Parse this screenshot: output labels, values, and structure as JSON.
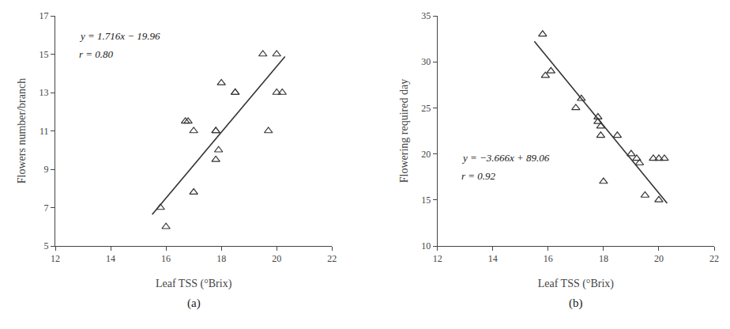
{
  "chart_data": [
    {
      "type": "scatter",
      "title": "(a)",
      "x_label": "Leaf TSS (°Brix)",
      "y_label": "Flowers number/branch",
      "series": [
        {
          "type": "scatter",
          "marker": "triangle-up-open",
          "color": "#333333",
          "x": [
            15.8,
            16.0,
            16.7,
            16.8,
            17.0,
            17.0,
            17.8,
            17.8,
            17.8,
            17.9,
            18.0,
            18.5,
            18.5,
            19.5,
            19.7,
            20.0,
            20.0,
            20.2
          ],
          "values": [
            7.0,
            6.0,
            11.5,
            11.5,
            7.8,
            11.0,
            11.0,
            11.0,
            9.5,
            10.0,
            13.5,
            13.0,
            13.0,
            15.0,
            11.0,
            13.0,
            15.0,
            13.0
          ]
        },
        {
          "type": "line",
          "line_style": "solid",
          "color": "#333333",
          "x": [
            15.5,
            20.3
          ],
          "values": [
            6.638,
            14.8748
          ]
        }
      ],
      "annotations": [
        "y = 1.716x − 19.96",
        "r = 0.80"
      ],
      "xlim": [
        12,
        22
      ],
      "ylim": [
        5,
        17
      ],
      "xticks": [
        12,
        14,
        16,
        18,
        20,
        22
      ],
      "yticks": [
        5,
        7,
        9,
        11,
        13,
        15,
        17
      ],
      "grid": false
    },
    {
      "type": "scatter",
      "title": "(b)",
      "x_label": "Leaf TSS (°Brix)",
      "y_label": "Flowering required day",
      "series": [
        {
          "type": "scatter",
          "marker": "triangle-up-open",
          "color": "#333333",
          "x": [
            15.8,
            15.9,
            16.1,
            17.0,
            17.2,
            17.8,
            17.8,
            17.9,
            17.9,
            18.0,
            18.5,
            19.0,
            19.2,
            19.3,
            19.5,
            19.8,
            20.0,
            20.0,
            20.2
          ],
          "values": [
            33.0,
            28.5,
            29.0,
            25.0,
            26.0,
            24.0,
            23.5,
            23.0,
            22.0,
            17.0,
            22.0,
            20.0,
            19.5,
            19.0,
            15.5,
            19.5,
            19.5,
            15.0,
            19.5
          ]
        },
        {
          "type": "line",
          "line_style": "solid",
          "color": "#333333",
          "x": [
            15.5,
            20.3
          ],
          "values": [
            32.237,
            14.6402
          ]
        }
      ],
      "annotations": [
        "y = −3.666x + 89.06",
        "r = 0.92"
      ],
      "xlim": [
        12,
        22
      ],
      "ylim": [
        10,
        35
      ],
      "xticks": [
        12,
        14,
        16,
        18,
        20,
        22
      ],
      "yticks": [
        10,
        15,
        20,
        25,
        30,
        35
      ],
      "grid": false
    }
  ]
}
